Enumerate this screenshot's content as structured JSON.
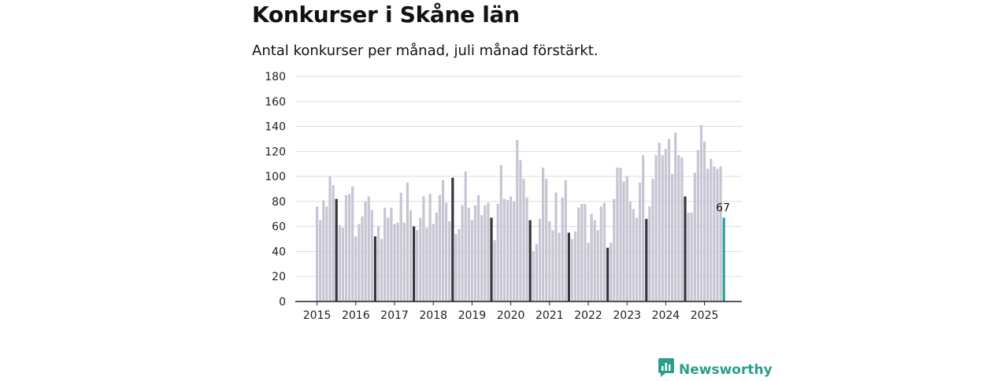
{
  "title": "Konkurser i Skåne län",
  "subtitle": "Antal konkurser per månad, juli månad förstärkt.",
  "brand": {
    "name": "Newsworthy",
    "icon": "newsworthy-logo-icon"
  },
  "colors": {
    "normal": "#c6c5d3",
    "highlight": "#35343f",
    "latest": "#2aa198",
    "grid": "#dddddd",
    "axis": "#222222"
  },
  "chart_data": {
    "type": "bar",
    "title": "Konkurser i Skåne län",
    "subtitle": "Antal konkurser per månad, juli månad förstärkt.",
    "xlabel": "",
    "ylabel": "",
    "ylim": [
      0,
      180
    ],
    "yticks": [
      0,
      20,
      40,
      60,
      80,
      100,
      120,
      140,
      160,
      180
    ],
    "grid": true,
    "highlight": "juli",
    "x_tick_labels": [
      "2015",
      "2016",
      "2017",
      "2018",
      "2019",
      "2020",
      "2021",
      "2022",
      "2023",
      "2024",
      "2025"
    ],
    "years": [
      {
        "year": "2015",
        "values": [
          76,
          65,
          81,
          76,
          100,
          93,
          82,
          61,
          59,
          85,
          86,
          92
        ]
      },
      {
        "year": "2016",
        "values": [
          52,
          62,
          68,
          80,
          84,
          73,
          52,
          60,
          50,
          75,
          67,
          75
        ]
      },
      {
        "year": "2017",
        "values": [
          62,
          63,
          87,
          63,
          95,
          73,
          60,
          57,
          67,
          84,
          59,
          86
        ]
      },
      {
        "year": "2018",
        "values": [
          62,
          71,
          85,
          97,
          79,
          64,
          99,
          54,
          58,
          77,
          104,
          75
        ]
      },
      {
        "year": "2019",
        "values": [
          65,
          77,
          85,
          69,
          77,
          79,
          67,
          49,
          78,
          109,
          82,
          81
        ]
      },
      {
        "year": "2020",
        "values": [
          84,
          80,
          129,
          113,
          98,
          83,
          65,
          40,
          46,
          66,
          107,
          98
        ]
      },
      {
        "year": "2021",
        "values": [
          64,
          57,
          87,
          55,
          83,
          97,
          55,
          50,
          56,
          75,
          78,
          78
        ]
      },
      {
        "year": "2022",
        "values": [
          47,
          70,
          65,
          57,
          76,
          79,
          43,
          47,
          82,
          107,
          107,
          96
        ]
      },
      {
        "year": "2023",
        "values": [
          100,
          80,
          74,
          67,
          95,
          117,
          66,
          76,
          98,
          117,
          127,
          117
        ]
      },
      {
        "year": "2024",
        "values": [
          122,
          130,
          102,
          135,
          117,
          115,
          84,
          71,
          71,
          103,
          121,
          141
        ]
      },
      {
        "year": "2025",
        "values": [
          128,
          106,
          114,
          108,
          106,
          108,
          67
        ]
      }
    ],
    "latest_label": "67"
  }
}
